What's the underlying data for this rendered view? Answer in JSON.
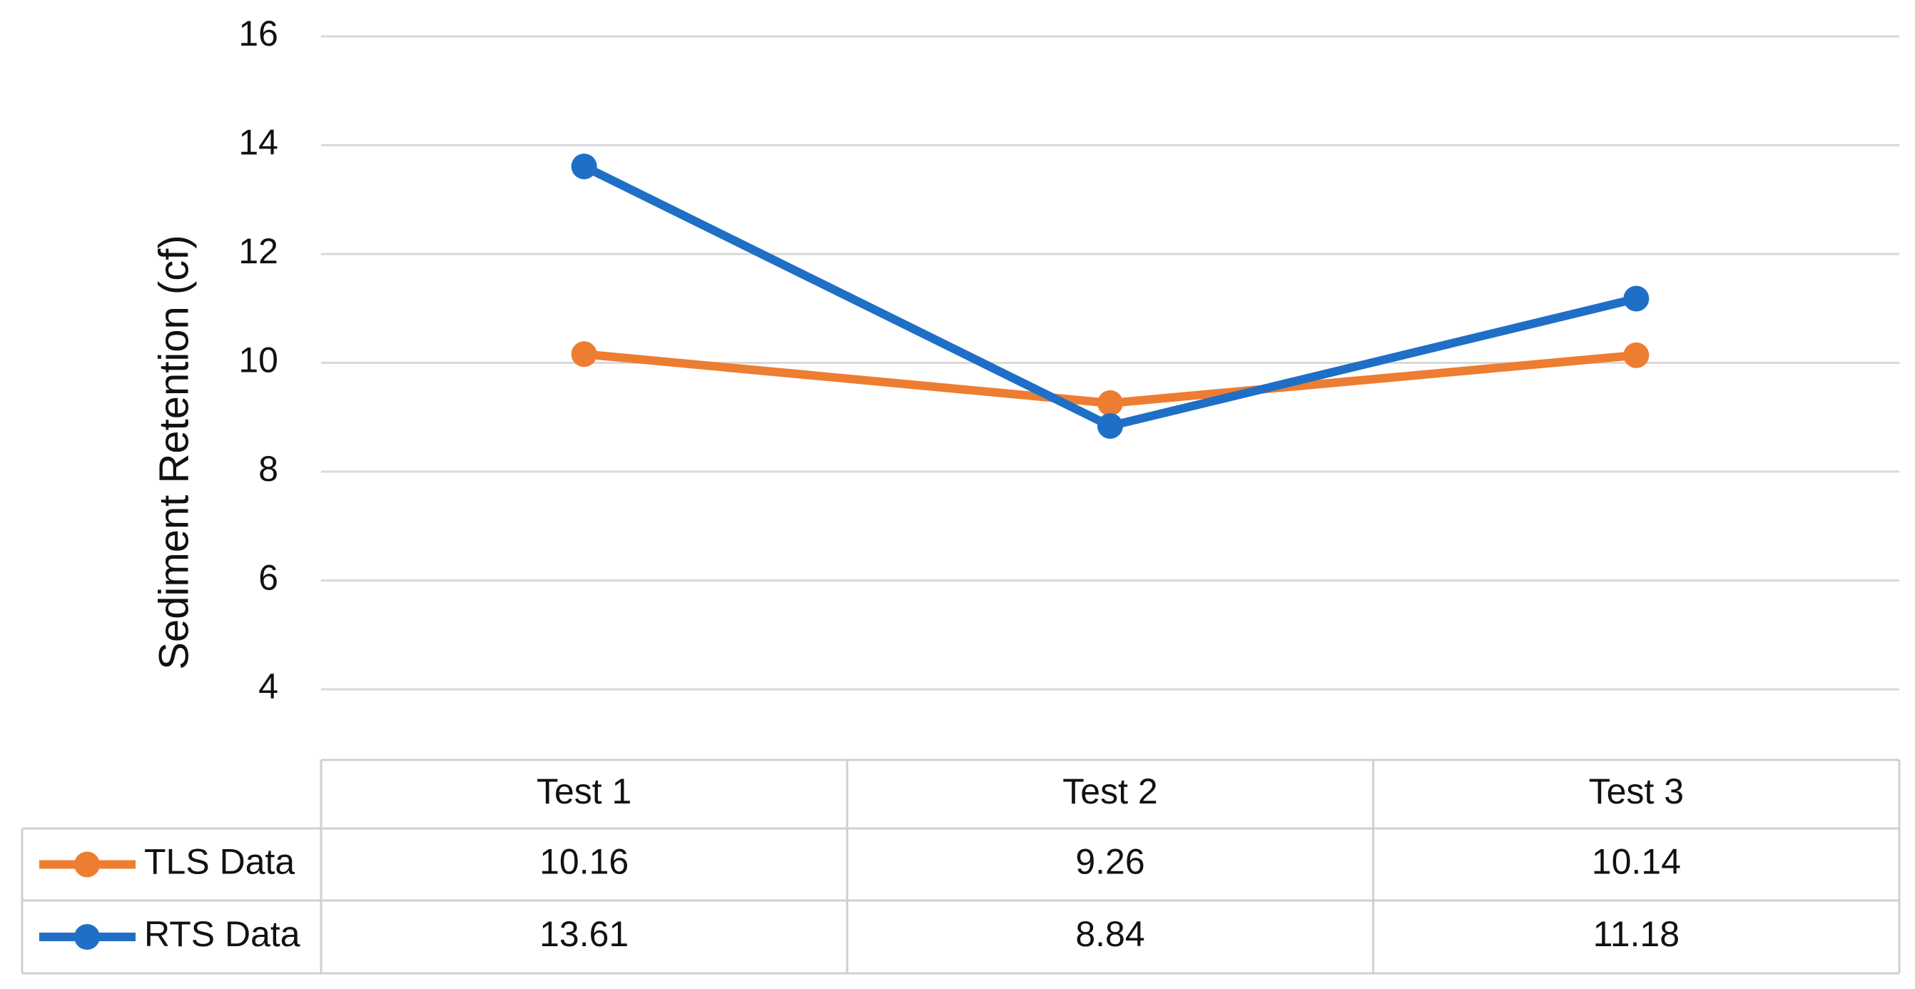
{
  "chart_data": {
    "type": "line",
    "y_label": "Sediment Retention (cf)",
    "categories": [
      "Test 1",
      "Test 2",
      "Test 3"
    ],
    "series": [
      {
        "name": "TLS Data",
        "color": "#ED7D31",
        "values": [
          10.16,
          9.26,
          10.14
        ]
      },
      {
        "name": "RTS Data",
        "color": "#1F6FC6",
        "values": [
          13.61,
          8.84,
          11.18
        ]
      }
    ],
    "ylim": [
      4,
      16
    ],
    "yticks": [
      4,
      6,
      8,
      10,
      12,
      14,
      16
    ],
    "grid": true
  }
}
